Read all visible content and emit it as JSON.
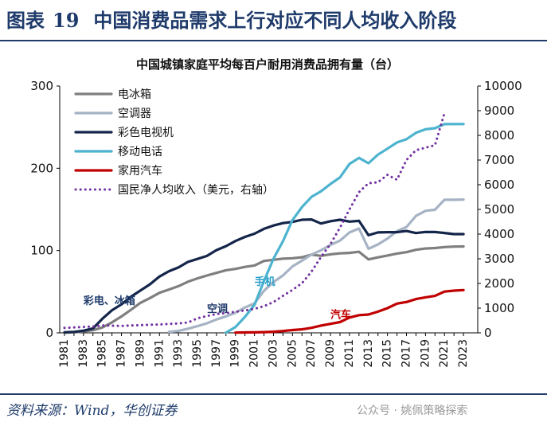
{
  "figure": {
    "label": "图表",
    "number": "19",
    "title": "中国消费品需求上行对应不同人均收入阶段"
  },
  "footer": {
    "source": "资料来源：Wind，华创证券"
  },
  "watermark": "公众号 · 姚佩策略探索",
  "chart_data": {
    "type": "line",
    "title": "中国城镇家庭平均每百户耐用消费品拥有量（台）",
    "x": [
      1981,
      1982,
      1983,
      1984,
      1985,
      1986,
      1987,
      1988,
      1989,
      1990,
      1991,
      1992,
      1993,
      1994,
      1995,
      1996,
      1997,
      1998,
      1999,
      2000,
      2001,
      2002,
      2003,
      2004,
      2005,
      2006,
      2007,
      2008,
      2009,
      2010,
      2011,
      2012,
      2013,
      2014,
      2015,
      2016,
      2017,
      2018,
      2019,
      2020,
      2021,
      2022,
      2023
    ],
    "x_tick_labels": [
      "1981",
      "1983",
      "1985",
      "1987",
      "1989",
      "1991",
      "1993",
      "1995",
      "1997",
      "1999",
      "2001",
      "2003",
      "2005",
      "2007",
      "2009",
      "2011",
      "2013",
      "2015",
      "2017",
      "2019",
      "2021",
      "2023"
    ],
    "y_left": {
      "min": 0,
      "max": 300,
      "ticks": [
        0,
        100,
        200,
        300
      ]
    },
    "y_right": {
      "min": 0,
      "max": 10000,
      "ticks": [
        0,
        1000,
        2000,
        3000,
        4000,
        5000,
        6000,
        7000,
        8000,
        9000,
        10000
      ]
    },
    "series": [
      {
        "name": "电冰箱",
        "color": "#7f7f7f",
        "axis": "left",
        "style": "solid",
        "values": [
          0.2,
          0.6,
          1.7,
          3.2,
          6.6,
          12.7,
          19.9,
          28.1,
          36.5,
          42.3,
          48.7,
          52.6,
          56.7,
          62.1,
          66.2,
          69.7,
          72.9,
          76.1,
          77.7,
          80.1,
          81.9,
          87.4,
          88.7,
          90.2,
          90.7,
          91.8,
          95.0,
          93.6,
          95.4,
          96.6,
          97.2,
          98.5,
          89.2,
          91.7,
          94.0,
          96.4,
          98.0,
          100.9,
          102.5,
          103.1,
          104.2,
          104.8,
          105.0
        ]
      },
      {
        "name": "空调器",
        "color": "#a6b3c4",
        "axis": "left",
        "style": "solid",
        "values": [
          null,
          null,
          null,
          null,
          null,
          null,
          null,
          null,
          null,
          null,
          null,
          1.2,
          2.3,
          5.0,
          8.1,
          11.6,
          16.3,
          20.0,
          24.5,
          30.8,
          35.8,
          51.1,
          61.8,
          69.8,
          80.7,
          87.8,
          95.1,
          100.3,
          106.8,
          112.1,
          122.0,
          126.8,
          102.2,
          107.4,
          114.6,
          123.7,
          128.6,
          142.2,
          148.3,
          149.6,
          161.7,
          161.7,
          162.0
        ]
      },
      {
        "name": "彩色电视机",
        "color": "#14254a",
        "axis": "left",
        "style": "solid",
        "values": [
          0.6,
          1.2,
          2.6,
          5.4,
          17.2,
          27.4,
          34.6,
          43.9,
          51.5,
          59.0,
          68.4,
          74.9,
          79.5,
          86.2,
          89.8,
          93.5,
          100.5,
          105.4,
          111.6,
          116.6,
          120.5,
          126.4,
          130.5,
          133.4,
          134.8,
          137.4,
          137.8,
          132.9,
          135.7,
          137.4,
          135.2,
          136.1,
          118.6,
          122.0,
          122.3,
          122.3,
          123.8,
          121.3,
          122.6,
          122.5,
          121.4,
          120.0,
          120.0
        ]
      },
      {
        "name": "移动电话",
        "color": "#4db3cf",
        "axis": "left",
        "style": "solid",
        "values": [
          null,
          null,
          null,
          null,
          null,
          null,
          null,
          null,
          null,
          null,
          null,
          null,
          null,
          null,
          null,
          null,
          null,
          0.2,
          7.1,
          19.5,
          34.0,
          62.9,
          90.1,
          111.4,
          137.0,
          152.9,
          165.2,
          172.0,
          181.0,
          188.9,
          205.3,
          212.6,
          206.1,
          216.6,
          223.8,
          231.4,
          235.4,
          243.1,
          247.4,
          248.7,
          253.6,
          253.7,
          253.7
        ]
      },
      {
        "name": "家用汽车",
        "color": "#c00000",
        "axis": "left",
        "style": "solid",
        "values": [
          null,
          null,
          null,
          null,
          null,
          null,
          null,
          null,
          null,
          null,
          null,
          null,
          null,
          null,
          null,
          null,
          null,
          null,
          0.3,
          0.5,
          0.6,
          0.9,
          1.4,
          2.2,
          3.4,
          4.3,
          6.1,
          8.8,
          10.9,
          13.1,
          18.6,
          21.5,
          22.3,
          25.7,
          30.0,
          35.5,
          37.5,
          41.0,
          43.2,
          44.9,
          50.1,
          51.3,
          52.0
        ]
      },
      {
        "name": "国民净人均收入（美元，右轴）",
        "color": "#7030a0",
        "axis": "right",
        "style": "dotted",
        "values": [
          200,
          220,
          240,
          260,
          300,
          290,
          280,
          300,
          310,
          330,
          340,
          360,
          380,
          420,
          590,
          680,
          760,
          800,
          850,
          910,
          970,
          1080,
          1250,
          1500,
          1740,
          2010,
          2480,
          3070,
          3600,
          4260,
          5000,
          5700,
          6060,
          6100,
          6400,
          6200,
          7000,
          7400,
          7500,
          7600,
          8900,
          null,
          null
        ]
      }
    ],
    "annotations": [
      {
        "text": "彩电、冰箱",
        "x": 1983,
        "y": 35,
        "color": "#1f3b6b"
      },
      {
        "text": "空调",
        "x": 1996,
        "y": 25,
        "color": "#1f3b6b"
      },
      {
        "text": "手机",
        "x": 2001,
        "y": 58,
        "color": "#2a9fc8"
      },
      {
        "text": "汽车",
        "x": 2009,
        "y": 18,
        "color": "#c00000"
      }
    ],
    "legend_position": "top-left"
  }
}
